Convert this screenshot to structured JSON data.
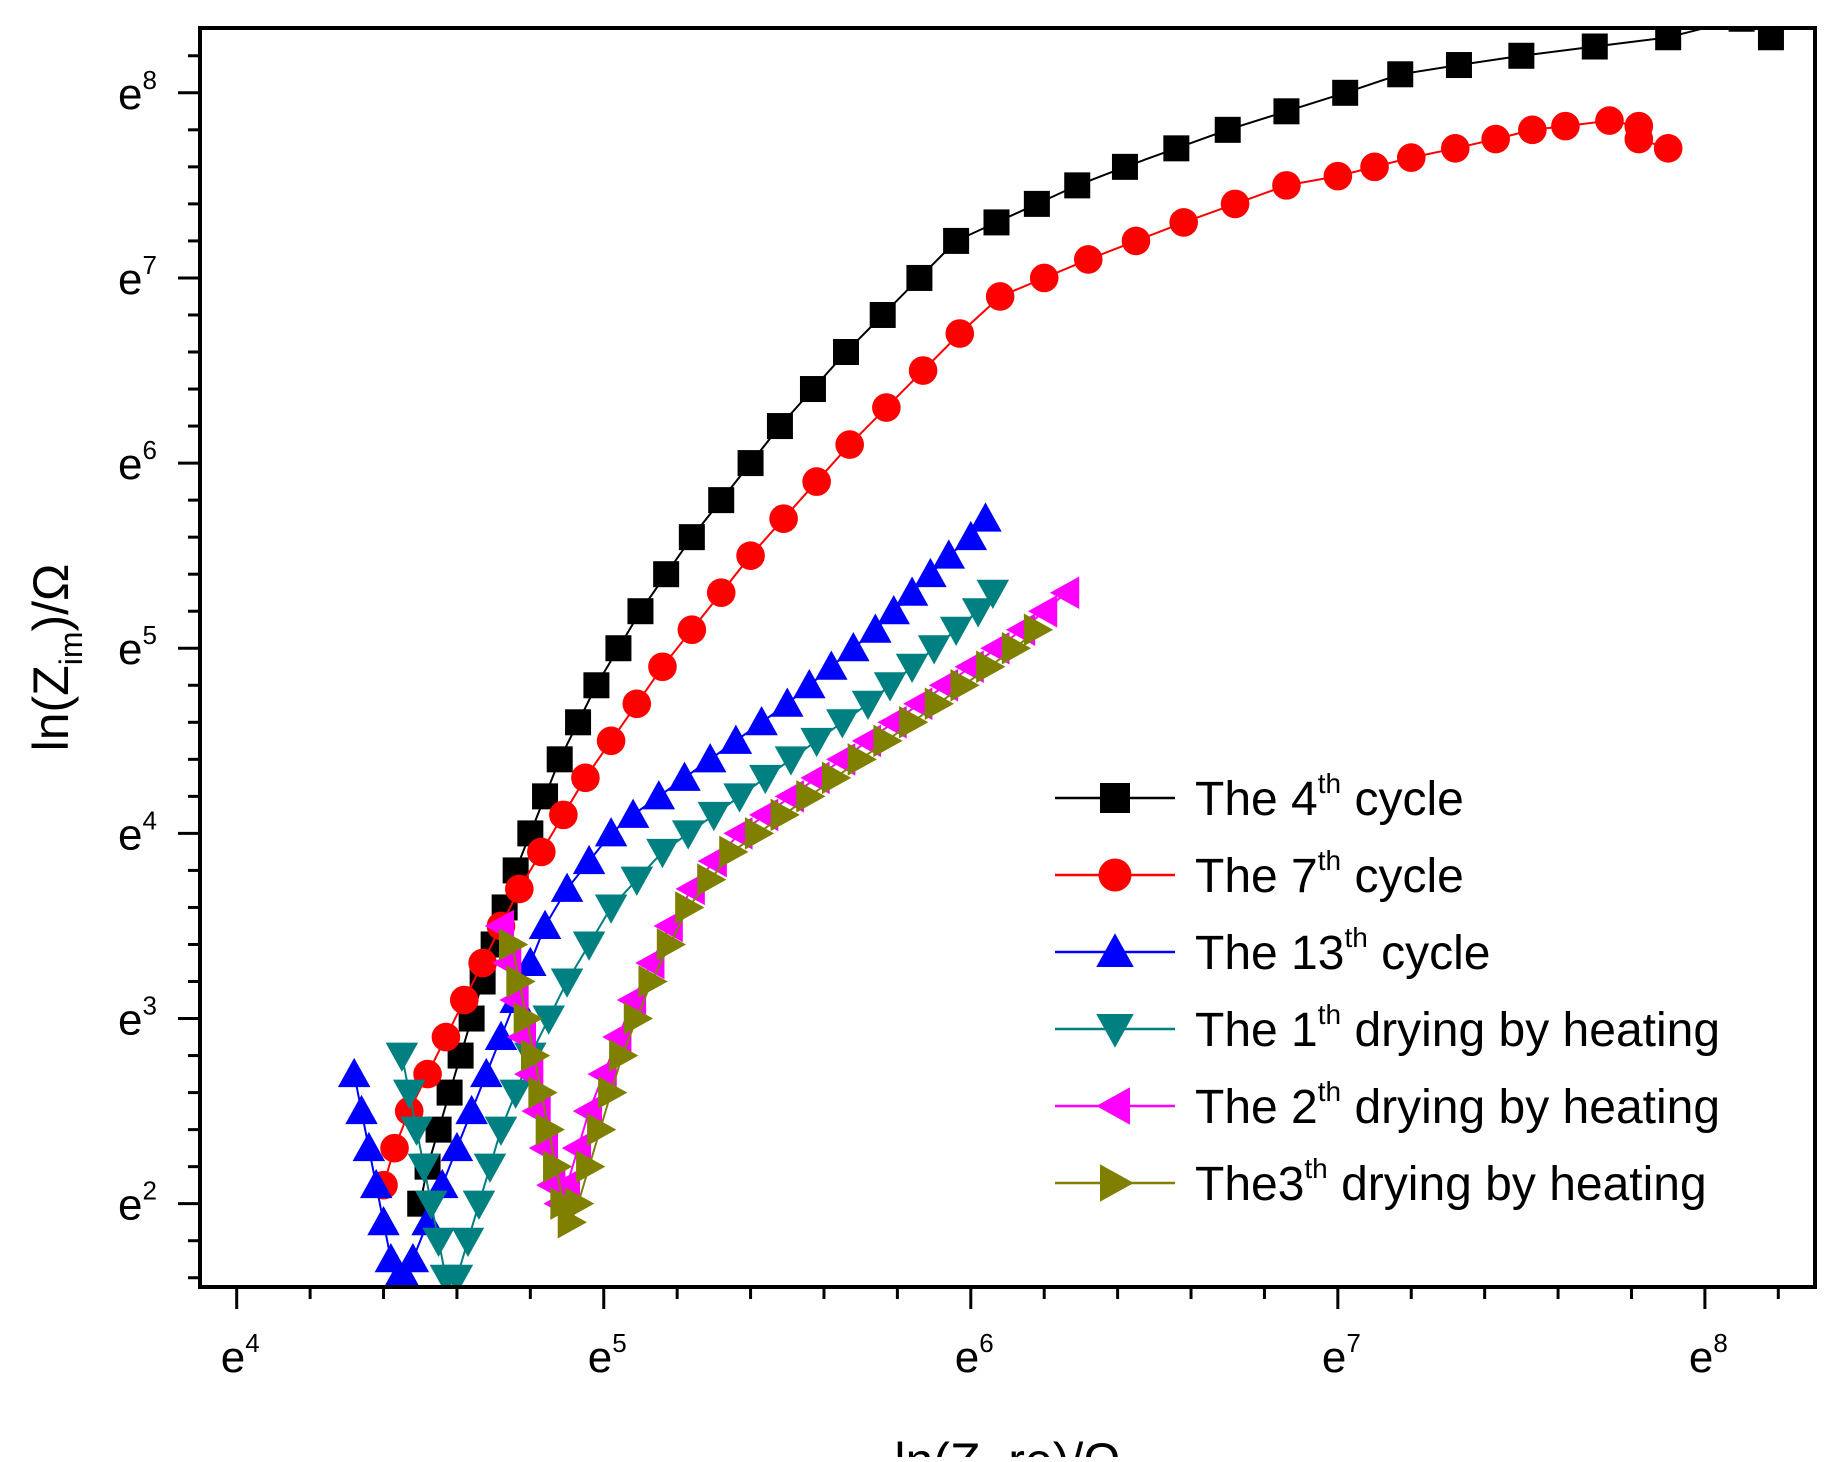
{
  "chart_data": {
    "type": "scatter",
    "title": "",
    "xlabel": "ln(Z_re)/Ω",
    "ylabel": "ln(Z_im)/Ω",
    "xlim": [
      3.9,
      8.3
    ],
    "ylim": [
      1.55,
      8.35
    ],
    "x_ticks": [
      {
        "base": "e",
        "exp": "4",
        "value": 4
      },
      {
        "base": "e",
        "exp": "5",
        "value": 5
      },
      {
        "base": "e",
        "exp": "6",
        "value": 6
      },
      {
        "base": "e",
        "exp": "7",
        "value": 7
      },
      {
        "base": "e",
        "exp": "8",
        "value": 8
      }
    ],
    "y_ticks": [
      {
        "base": "e",
        "exp": "2",
        "value": 2
      },
      {
        "base": "e",
        "exp": "3",
        "value": 3
      },
      {
        "base": "e",
        "exp": "4",
        "value": 4
      },
      {
        "base": "e",
        "exp": "5",
        "value": 5
      },
      {
        "base": "e",
        "exp": "6",
        "value": 6
      },
      {
        "base": "e",
        "exp": "7",
        "value": 7
      },
      {
        "base": "e",
        "exp": "8",
        "value": 8
      }
    ],
    "y_title": {
      "pre": "ln(Z",
      "sub": "im",
      "post": ")/Ω"
    },
    "legend_position": "bottom-right",
    "series": [
      {
        "name": "The 4th cycle",
        "label_pre": "The 4",
        "label_sup": "th",
        "label_post": " cycle",
        "color": "#000000",
        "marker": "square",
        "connected": true,
        "x": [
          4.5,
          4.52,
          4.55,
          4.58,
          4.61,
          4.64,
          4.67,
          4.7,
          4.73,
          4.76,
          4.8,
          4.84,
          4.88,
          4.93,
          4.98,
          5.04,
          5.1,
          5.17,
          5.24,
          5.32,
          5.4,
          5.48,
          5.57,
          5.66,
          5.76,
          5.86,
          5.96,
          6.07,
          6.18,
          6.29,
          6.42,
          6.56,
          6.7,
          6.86,
          7.02,
          7.17,
          7.33,
          7.5,
          7.7,
          7.9,
          8.1,
          8.18,
          8.27,
          8.35
        ],
        "y": [
          2.0,
          2.2,
          2.4,
          2.6,
          2.8,
          3.0,
          3.2,
          3.4,
          3.6,
          3.8,
          4.0,
          4.2,
          4.4,
          4.6,
          4.8,
          5.0,
          5.2,
          5.4,
          5.6,
          5.8,
          6.0,
          6.2,
          6.4,
          6.6,
          6.8,
          7.0,
          7.2,
          7.3,
          7.4,
          7.5,
          7.6,
          7.7,
          7.8,
          7.9,
          8.0,
          8.1,
          8.15,
          8.2,
          8.25,
          8.3,
          8.4,
          8.3,
          8.5,
          8.6
        ]
      },
      {
        "name": "The 7th cycle",
        "label_pre": "The 7",
        "label_sup": "th",
        "label_post": " cycle",
        "color": "#ff0000",
        "marker": "circle",
        "connected": true,
        "x": [
          4.4,
          4.43,
          4.47,
          4.52,
          4.57,
          4.62,
          4.67,
          4.72,
          4.77,
          4.83,
          4.89,
          4.95,
          5.02,
          5.09,
          5.16,
          5.24,
          5.32,
          5.4,
          5.49,
          5.58,
          5.67,
          5.77,
          5.87,
          5.97,
          6.08,
          6.2,
          6.32,
          6.45,
          6.58,
          6.72,
          6.86,
          7.0,
          7.1,
          7.2,
          7.32,
          7.43,
          7.53,
          7.62,
          7.74,
          7.82,
          7.82,
          7.9
        ],
        "y": [
          2.1,
          2.3,
          2.5,
          2.7,
          2.9,
          3.1,
          3.3,
          3.5,
          3.7,
          3.9,
          4.1,
          4.3,
          4.5,
          4.7,
          4.9,
          5.1,
          5.3,
          5.5,
          5.7,
          5.9,
          6.1,
          6.3,
          6.5,
          6.7,
          6.9,
          7.0,
          7.1,
          7.2,
          7.3,
          7.4,
          7.5,
          7.55,
          7.6,
          7.65,
          7.7,
          7.75,
          7.8,
          7.82,
          7.85,
          7.82,
          7.75,
          7.7
        ]
      },
      {
        "name": "The 13th cycle",
        "label_pre": "The 13",
        "label_sup": "th",
        "label_post": " cycle",
        "color": "#0000ff",
        "marker": "triangle-up",
        "connected": true,
        "x": [
          4.32,
          4.34,
          4.36,
          4.38,
          4.4,
          4.42,
          4.44,
          4.46,
          4.48,
          4.52,
          4.56,
          4.6,
          4.64,
          4.68,
          4.72,
          4.76,
          4.8,
          4.84,
          4.9,
          4.96,
          5.02,
          5.08,
          5.15,
          5.22,
          5.29,
          5.36,
          5.43,
          5.5,
          5.56,
          5.62,
          5.68,
          5.74,
          5.79,
          5.84,
          5.89,
          5.94,
          6.0,
          6.04
        ],
        "y": [
          2.7,
          2.5,
          2.3,
          2.1,
          1.9,
          1.7,
          1.6,
          1.6,
          1.7,
          1.9,
          2.1,
          2.3,
          2.5,
          2.7,
          2.9,
          3.1,
          3.3,
          3.5,
          3.7,
          3.85,
          4.0,
          4.1,
          4.2,
          4.3,
          4.4,
          4.5,
          4.6,
          4.7,
          4.8,
          4.9,
          5.0,
          5.1,
          5.2,
          5.3,
          5.4,
          5.5,
          5.6,
          5.7
        ]
      },
      {
        "name": "The 1th drying by heating",
        "label_pre": "The 1",
        "label_sup": "th",
        "label_post": " drying by heating",
        "color": "#008080",
        "marker": "triangle-down",
        "connected": true,
        "x": [
          4.45,
          4.47,
          4.49,
          4.51,
          4.53,
          4.55,
          4.57,
          4.6,
          4.63,
          4.66,
          4.69,
          4.72,
          4.76,
          4.8,
          4.85,
          4.9,
          4.96,
          5.02,
          5.09,
          5.16,
          5.23,
          5.3,
          5.37,
          5.44,
          5.51,
          5.58,
          5.65,
          5.72,
          5.78,
          5.84,
          5.9,
          5.96,
          6.02,
          6.06
        ],
        "y": [
          2.8,
          2.6,
          2.4,
          2.2,
          2.0,
          1.8,
          1.6,
          1.6,
          1.8,
          2.0,
          2.2,
          2.4,
          2.6,
          2.8,
          3.0,
          3.2,
          3.4,
          3.6,
          3.75,
          3.9,
          4.0,
          4.1,
          4.2,
          4.3,
          4.4,
          4.5,
          4.6,
          4.7,
          4.8,
          4.9,
          5.0,
          5.1,
          5.2,
          5.3
        ]
      },
      {
        "name": "The 2th drying by heating",
        "label_pre": "The 2",
        "label_sup": "th",
        "label_post": " drying by heating",
        "color": "#ff00ff",
        "marker": "triangle-left",
        "connected": true,
        "x": [
          4.72,
          4.74,
          4.76,
          4.78,
          4.8,
          4.82,
          4.84,
          4.86,
          4.88,
          4.9,
          4.93,
          4.96,
          5.0,
          5.04,
          5.08,
          5.13,
          5.18,
          5.24,
          5.3,
          5.37,
          5.44,
          5.51,
          5.58,
          5.65,
          5.72,
          5.79,
          5.86,
          5.93,
          6.0,
          6.07,
          6.14,
          6.2,
          6.26
        ],
        "y": [
          3.5,
          3.3,
          3.1,
          2.9,
          2.7,
          2.5,
          2.3,
          2.1,
          2.0,
          2.1,
          2.3,
          2.5,
          2.7,
          2.9,
          3.1,
          3.3,
          3.5,
          3.7,
          3.85,
          4.0,
          4.1,
          4.2,
          4.3,
          4.4,
          4.5,
          4.6,
          4.7,
          4.8,
          4.9,
          5.0,
          5.1,
          5.2,
          5.3
        ]
      },
      {
        "name": "The3th drying by heating",
        "label_pre": "The3",
        "label_sup": "th",
        "label_post": " drying by heating",
        "color": "#808000",
        "marker": "triangle-right",
        "connected": true,
        "x": [
          4.75,
          4.77,
          4.79,
          4.81,
          4.83,
          4.85,
          4.87,
          4.89,
          4.91,
          4.93,
          4.96,
          4.99,
          5.02,
          5.05,
          5.09,
          5.13,
          5.18,
          5.23,
          5.29,
          5.35,
          5.42,
          5.49,
          5.56,
          5.63,
          5.7,
          5.77,
          5.84,
          5.91,
          5.98,
          6.05,
          6.12,
          6.18
        ],
        "y": [
          3.4,
          3.2,
          3.0,
          2.8,
          2.6,
          2.4,
          2.2,
          2.0,
          1.9,
          2.0,
          2.2,
          2.4,
          2.6,
          2.8,
          3.0,
          3.2,
          3.4,
          3.6,
          3.75,
          3.9,
          4.0,
          4.1,
          4.2,
          4.3,
          4.4,
          4.5,
          4.6,
          4.7,
          4.8,
          4.9,
          5.0,
          5.1
        ]
      }
    ]
  }
}
